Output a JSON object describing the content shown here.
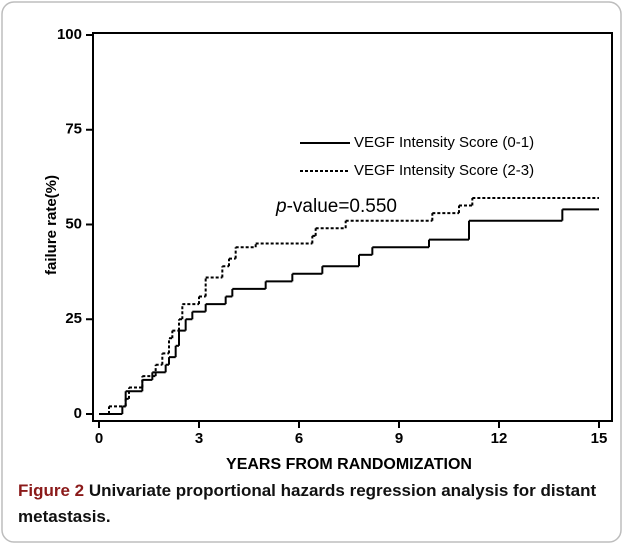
{
  "chart_data": {
    "type": "step",
    "xlabel": "YEARS FROM RANDOMIZATION",
    "ylabel": "failure rate(%)",
    "annotation": [
      "p",
      "-value=0.550"
    ],
    "xlim": [
      0,
      15
    ],
    "xticks": [
      0,
      3,
      6,
      9,
      12,
      15
    ],
    "ylim": [
      0,
      100
    ],
    "yticks": [
      0,
      25,
      50,
      75,
      100
    ],
    "legend": "upper left",
    "series": [
      {
        "name": "VEGF Intensity Score (0-1)",
        "color": "#000000",
        "dash": "solid",
        "x": [
          0,
          0.7,
          0.8,
          1.3,
          1.6,
          2.0,
          2.1,
          2.3,
          2.4,
          2.6,
          2.8,
          3.2,
          3.8,
          4.0,
          5.0,
          5.8,
          6.7,
          7.8,
          8.2,
          9.9,
          11.1,
          13.9,
          15
        ],
        "values": [
          0,
          2,
          6,
          9,
          11,
          13,
          15,
          18,
          22,
          25,
          27,
          29,
          31,
          33,
          35,
          37,
          39,
          42,
          44,
          46,
          51,
          54,
          54
        ]
      },
      {
        "name": "VEGF Intensity Score (2-3)",
        "color": "#000000",
        "dash": "dotted",
        "x": [
          0,
          0.3,
          0.8,
          0.9,
          1.3,
          1.7,
          1.9,
          2.1,
          2.2,
          2.4,
          2.5,
          3.0,
          3.2,
          3.7,
          3.9,
          4.1,
          4.7,
          6.4,
          6.5,
          7.4,
          10.0,
          10.8,
          11.2,
          15
        ],
        "values": [
          0,
          2,
          4,
          7,
          10,
          13,
          16,
          20,
          22,
          25,
          29,
          31,
          36,
          39,
          41,
          44,
          45,
          47,
          49,
          51,
          53,
          55,
          57,
          57
        ]
      }
    ],
    "caption": {
      "label": "Figure 2",
      "text": "Univariate proportional hazards regression analysis for distant metastasis."
    }
  }
}
